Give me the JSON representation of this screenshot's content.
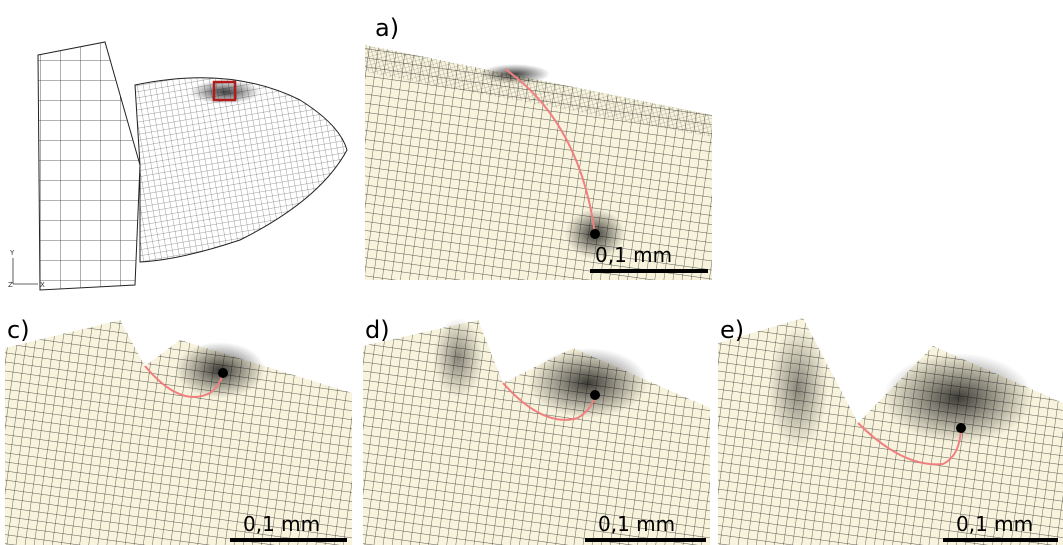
{
  "overview": {
    "axis_labels": [
      "Y",
      "Z",
      "X"
    ]
  },
  "panels": [
    {
      "label": "a)",
      "scale": "0,1 mm"
    },
    {
      "label": "c)",
      "scale": "0,1 mm"
    },
    {
      "label": "d)",
      "scale": "0,1 mm"
    },
    {
      "label": "e)",
      "scale": "0,1 mm"
    }
  ]
}
